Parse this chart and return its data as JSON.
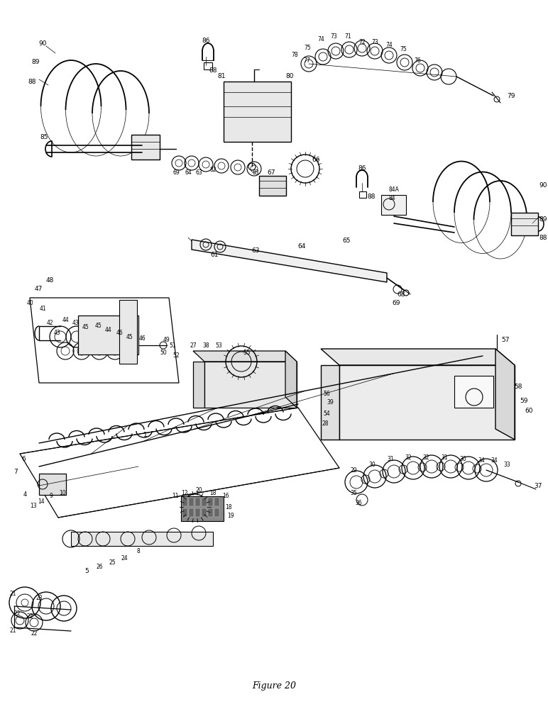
{
  "caption": "Figure 20",
  "bg": "#ffffff",
  "black": "#000000"
}
